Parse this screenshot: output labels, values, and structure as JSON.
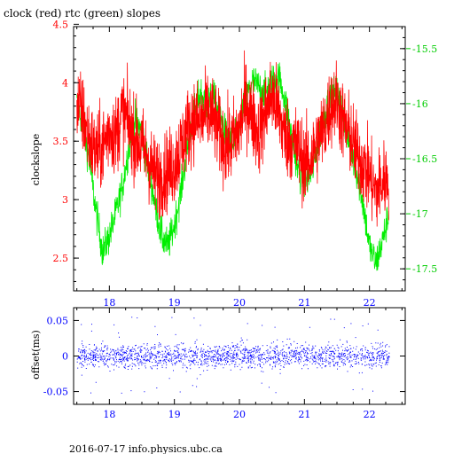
{
  "title": "clock (red) rtc (green) slopes",
  "footer": "2016-07-17 info.physics.ubc.ca",
  "colors": {
    "clock": "#ff0000",
    "rtc": "#00ee00",
    "offset": "#0000ff",
    "frame": "#000000",
    "left_axis": "#ff0000",
    "right_axis": "#00cc00",
    "bottom_axis": "#0000ff"
  },
  "chart_data": [
    {
      "type": "line",
      "title": "clock (red) rtc (green) slopes",
      "xlabel": "",
      "ylabel": "clockslope",
      "xlim": [
        17.45,
        22.55
      ],
      "ylim": [
        2.22,
        4.48
      ],
      "y2lim": [
        -17.7,
        -15.3
      ],
      "x_ticks": [
        "18",
        "19",
        "20",
        "21",
        "22"
      ],
      "y_ticks": [
        "2.5",
        "3",
        "3.5",
        "4",
        "4.5"
      ],
      "y2_ticks": [
        "-15.5",
        "-16",
        "-16.5",
        "-17",
        "-17.5"
      ],
      "grid": false,
      "series": [
        {
          "name": "clock",
          "axis": "left",
          "x": [
            17.5,
            17.6,
            17.7,
            17.8,
            17.9,
            18.0,
            18.1,
            18.2,
            18.3,
            18.4,
            18.5,
            18.6,
            18.7,
            18.8,
            18.9,
            19.0,
            19.1,
            19.2,
            19.3,
            19.4,
            19.5,
            19.6,
            19.7,
            19.8,
            19.9,
            20.0,
            20.1,
            20.2,
            20.3,
            20.4,
            20.5,
            20.6,
            20.7,
            20.8,
            20.9,
            21.0,
            21.1,
            21.2,
            21.3,
            21.4,
            21.5,
            21.6,
            21.7,
            21.8,
            21.9,
            22.0,
            22.1,
            22.2,
            22.3
          ],
          "values": [
            3.85,
            3.7,
            3.5,
            3.4,
            3.45,
            3.6,
            3.55,
            3.75,
            3.65,
            3.5,
            3.45,
            3.35,
            3.2,
            3.2,
            3.25,
            3.3,
            3.45,
            3.6,
            3.7,
            3.65,
            3.75,
            3.7,
            3.55,
            3.45,
            3.5,
            3.6,
            3.85,
            3.7,
            3.55,
            3.75,
            3.9,
            3.75,
            3.55,
            3.5,
            3.45,
            3.3,
            3.35,
            3.5,
            3.6,
            3.8,
            3.85,
            3.65,
            3.55,
            3.4,
            3.3,
            3.2,
            3.05,
            3.15,
            3.2
          ]
        },
        {
          "name": "rtc",
          "axis": "right",
          "x": [
            17.5,
            17.6,
            17.7,
            17.8,
            17.9,
            18.0,
            18.1,
            18.2,
            18.3,
            18.4,
            18.5,
            18.6,
            18.7,
            18.8,
            18.9,
            19.0,
            19.1,
            19.2,
            19.3,
            19.4,
            19.5,
            19.6,
            19.7,
            19.8,
            19.9,
            20.0,
            20.1,
            20.2,
            20.3,
            20.4,
            20.5,
            20.6,
            20.7,
            20.8,
            20.9,
            21.0,
            21.1,
            21.2,
            21.3,
            21.4,
            21.5,
            21.6,
            21.7,
            21.8,
            21.9,
            22.0,
            22.1,
            22.2,
            22.3
          ],
          "values": [
            -16.0,
            -16.2,
            -16.55,
            -17.0,
            -17.35,
            -17.2,
            -17.0,
            -16.75,
            -16.4,
            -16.15,
            -16.25,
            -16.6,
            -16.9,
            -17.2,
            -17.3,
            -17.1,
            -16.8,
            -16.4,
            -16.1,
            -15.9,
            -16.0,
            -15.95,
            -16.1,
            -16.3,
            -16.4,
            -16.2,
            -15.95,
            -15.8,
            -15.85,
            -15.9,
            -15.8,
            -15.75,
            -15.95,
            -16.3,
            -16.6,
            -16.7,
            -16.65,
            -16.4,
            -16.1,
            -15.95,
            -15.9,
            -16.1,
            -16.4,
            -16.6,
            -16.9,
            -17.3,
            -17.45,
            -17.25,
            -17.0
          ]
        }
      ]
    },
    {
      "type": "scatter",
      "title": "",
      "xlabel": "",
      "ylabel": "offset(ms)",
      "xlim": [
        17.45,
        22.55
      ],
      "ylim": [
        -0.068,
        0.068
      ],
      "x_ticks": [
        "18",
        "19",
        "20",
        "21",
        "22"
      ],
      "y_ticks": [
        "0.05",
        "0",
        "-0.05"
      ],
      "grid": false,
      "series": [
        {
          "name": "offset",
          "x_range": [
            17.5,
            22.3
          ],
          "center": 0,
          "spread": 0.015,
          "extreme_range": [
            -0.055,
            0.055
          ]
        }
      ]
    }
  ]
}
